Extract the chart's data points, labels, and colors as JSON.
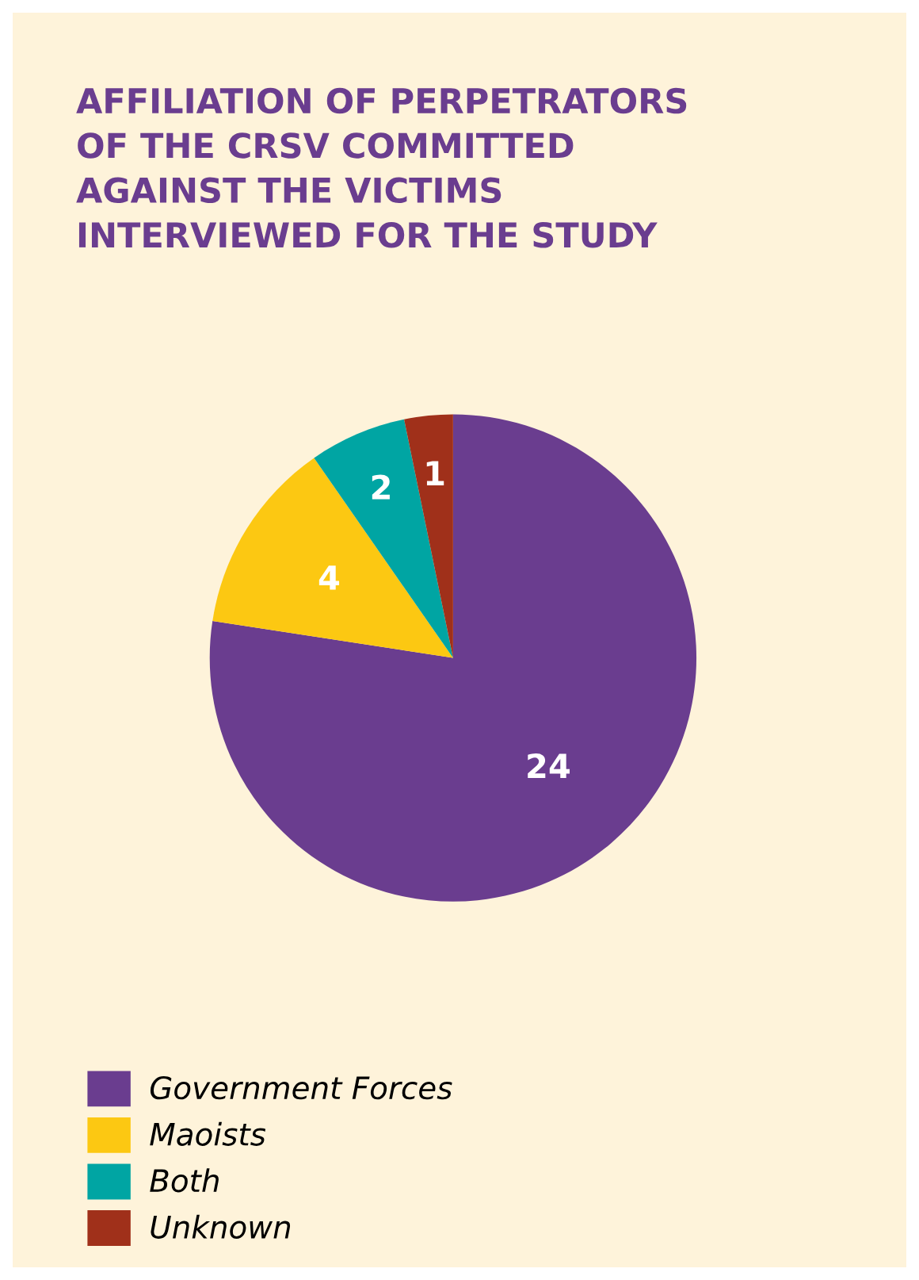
{
  "chart_data": {
    "type": "pie",
    "title": "AFFILIATION OF PERPETRATORS\nOF THE CRSV COMMITTED\nAGAINST THE VICTIMS\nINTERVIEWED FOR THE STUDY",
    "categories": [
      "Government Forces",
      "Maoists",
      "Both",
      "Unknown"
    ],
    "values": [
      24,
      4,
      2,
      1
    ],
    "colors": [
      "#6a3d8f",
      "#fcc812",
      "#00a5a3",
      "#a0301a"
    ],
    "data_labels": true,
    "legend": "bottom left"
  }
}
